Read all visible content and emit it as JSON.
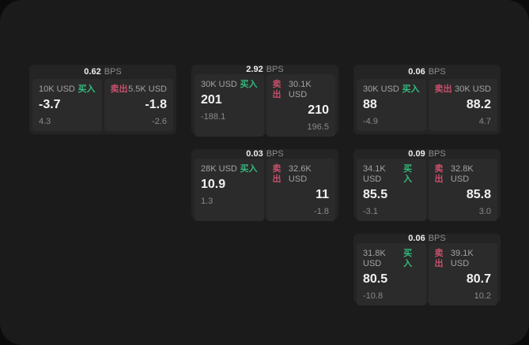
{
  "labels": {
    "bps": "BPS",
    "buy": "买入",
    "sell": "卖出"
  },
  "colors": {
    "page_background": "#1b1b1b",
    "card_background": "#242424",
    "panel_background": "#2b2b2b",
    "buy_green": "#34b97c",
    "sell_red": "#c94f6b",
    "price_white": "#f2f2f2",
    "muted_gray": "#8a8a8a"
  },
  "cards": [
    {
      "row": 1,
      "col": 1,
      "bps": "0.62",
      "buy": {
        "amount": "10K USD",
        "price": "-3.7",
        "delta": "4.3"
      },
      "sell": {
        "amount": "5.5K USD",
        "price": "-1.8",
        "delta": "-2.6"
      }
    },
    {
      "row": 1,
      "col": 2,
      "bps": "2.92",
      "buy": {
        "amount": "30K USD",
        "price": "201",
        "delta": "-188.1"
      },
      "sell": {
        "amount": "30.1K USD",
        "price": "210",
        "delta": "196.5"
      }
    },
    {
      "row": 1,
      "col": 3,
      "bps": "0.06",
      "buy": {
        "amount": "30K USD",
        "price": "88",
        "delta": "-4.9"
      },
      "sell": {
        "amount": "30K USD",
        "price": "88.2",
        "delta": "4.7"
      }
    },
    {
      "row": 2,
      "col": 2,
      "bps": "0.03",
      "buy": {
        "amount": "28K USD",
        "price": "10.9",
        "delta": "1.3"
      },
      "sell": {
        "amount": "32.6K USD",
        "price": "11",
        "delta": "-1.8"
      }
    },
    {
      "row": 2,
      "col": 3,
      "bps": "0.09",
      "buy": {
        "amount": "34.1K USD",
        "price": "85.5",
        "delta": "-3.1"
      },
      "sell": {
        "amount": "32.8K USD",
        "price": "85.8",
        "delta": "3.0"
      }
    },
    {
      "row": 3,
      "col": 3,
      "bps": "0.06",
      "buy": {
        "amount": "31.8K USD",
        "price": "80.5",
        "delta": "-10.8"
      },
      "sell": {
        "amount": "39.1K USD",
        "price": "80.7",
        "delta": "10.2"
      }
    }
  ]
}
